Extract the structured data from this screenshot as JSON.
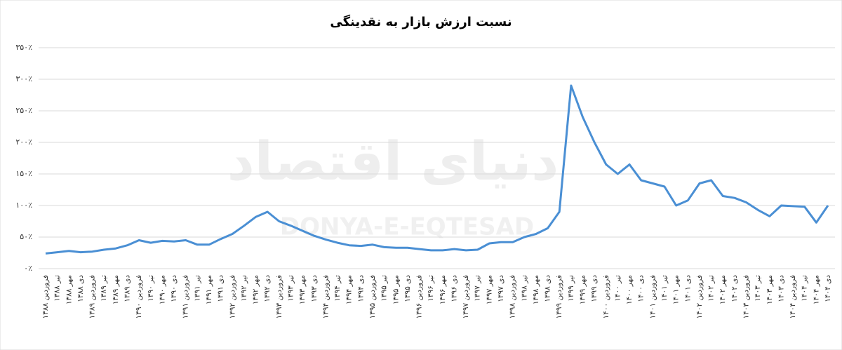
{
  "chart_data": {
    "type": "line",
    "title": "نسبت ارزش بازار به نقدینگی",
    "watermark": "دنیای اقتصاد",
    "watermark_latin": "DONYA-E-EQTESAD",
    "categories": [
      "فروردین ۱۳۸۸",
      "تیر ۱۳۸۸",
      "مهر ۱۳۸۸",
      "دی ۱۳۸۸",
      "فروردین ۱۳۸۹",
      "تیر ۱۳۸۹",
      "مهر ۱۳۸۹",
      "دی ۱۳۸۹",
      "فروردین ۱۳۹۰",
      "تیر ۱۳۹۰",
      "مهر ۱۳۹۰",
      "دی ۱۳۹۰",
      "فروردین ۱۳۹۱",
      "تیر ۱۳۹۱",
      "مهر ۱۳۹۱",
      "دی ۱۳۹۱",
      "فروردین ۱۳۹۲",
      "تیر ۱۳۹۲",
      "مهر ۱۳۹۲",
      "دی ۱۳۹۲",
      "فروردین ۱۳۹۳",
      "تیر ۱۳۹۳",
      "مهر ۱۳۹۳",
      "دی ۱۳۹۳",
      "فروردین ۱۳۹۴",
      "تیر ۱۳۹۴",
      "مهر ۱۳۹۴",
      "دی ۱۳۹۴",
      "فروردین ۱۳۹۵",
      "تیر ۱۳۹۵",
      "مهر ۱۳۹۵",
      "دی ۱۳۹۵",
      "فروردین ۱۳۹۶",
      "تیر ۱۳۹۶",
      "مهر ۱۳۹۶",
      "دی ۱۳۹۶",
      "فروردین ۱۳۹۷",
      "تیر ۱۳۹۷",
      "مهر ۱۳۹۷",
      "دی ۱۳۹۷",
      "فروردین ۱۳۹۸",
      "تیر ۱۳۹۸",
      "مهر ۱۳۹۸",
      "دی ۱۳۹۸",
      "فروردین ۱۳۹۹",
      "تیر ۱۳۹۹",
      "مهر ۱۳۹۹",
      "دی ۱۳۹۹",
      "فروردین ۱۴۰۰",
      "تیر ۱۴۰۰",
      "مهر ۱۴۰۰",
      "دی ۱۴۰۰",
      "فروردین ۱۴۰۱",
      "تیر ۱۴۰۱",
      "مهر ۱۴۰۱",
      "دی ۱۴۰۱",
      "فروردین ۱۴۰۲",
      "تیر ۱۴۰۲",
      "مهر ۱۴۰۲",
      "دی ۱۴۰۲",
      "فروردین ۱۴۰۳",
      "تیر ۱۴۰۳",
      "مهر ۱۴۰۳",
      "دی ۱۴۰۳",
      "فروردین ۱۴۰۴",
      "تیر ۱۴۰۴",
      "مهر ۱۴۰۴",
      "دی ۱۴۰۴"
    ],
    "values": [
      24,
      26,
      28,
      26,
      27,
      30,
      32,
      37,
      45,
      41,
      44,
      43,
      45,
      38,
      38,
      47,
      55,
      68,
      82,
      90,
      75,
      68,
      60,
      52,
      46,
      41,
      37,
      36,
      38,
      34,
      33,
      33,
      31,
      29,
      29,
      31,
      29,
      30,
      40,
      42,
      42,
      50,
      55,
      64,
      90,
      290,
      240,
      200,
      165,
      150,
      165,
      140,
      135,
      130,
      100,
      108,
      135,
      140,
      115,
      112,
      105,
      93,
      83,
      100,
      99,
      98,
      73,
      100
    ],
    "color": "#4a8fd4",
    "ylim": [
      0,
      350
    ],
    "yticks": [
      {
        "value": 0,
        "label": "۰٪"
      },
      {
        "value": 50,
        "label": "۵۰٪"
      },
      {
        "value": 100,
        "label": "۱۰۰٪"
      },
      {
        "value": 150,
        "label": "۱۵۰٪"
      },
      {
        "value": 200,
        "label": "۲۰۰٪"
      },
      {
        "value": 250,
        "label": "۲۵۰٪"
      },
      {
        "value": 300,
        "label": "۳۰۰٪"
      },
      {
        "value": 350,
        "label": "۳۵۰٪"
      }
    ],
    "grid": true
  }
}
